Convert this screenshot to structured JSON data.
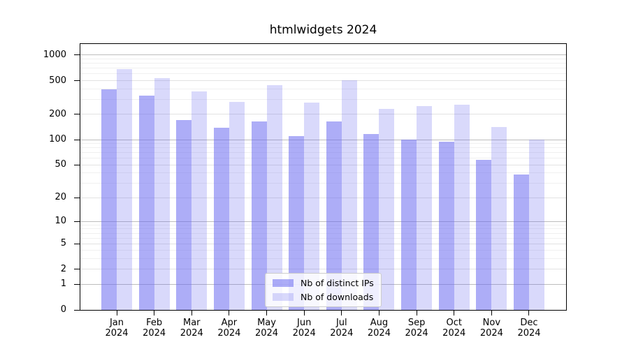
{
  "chart_data": {
    "type": "bar",
    "title": "htmlwidgets 2024",
    "scale": "log1p",
    "ylabel": "",
    "xlabel": "",
    "ylim": [
      0,
      1354
    ],
    "y_ticks": [
      1000,
      500,
      200,
      100,
      50,
      20,
      10,
      5,
      2,
      1,
      0
    ],
    "grid": "horizontal, log major + minor lines",
    "legend_position": "inside plot, lower center",
    "categories": [
      {
        "month": "Jan",
        "year": "2024"
      },
      {
        "month": "Feb",
        "year": "2024"
      },
      {
        "month": "Mar",
        "year": "2024"
      },
      {
        "month": "Apr",
        "year": "2024"
      },
      {
        "month": "May",
        "year": "2024"
      },
      {
        "month": "Jun",
        "year": "2024"
      },
      {
        "month": "Jul",
        "year": "2024"
      },
      {
        "month": "Aug",
        "year": "2024"
      },
      {
        "month": "Sep",
        "year": "2024"
      },
      {
        "month": "Oct",
        "year": "2024"
      },
      {
        "month": "Nov",
        "year": "2024"
      },
      {
        "month": "Dec",
        "year": "2024"
      }
    ],
    "series": [
      {
        "name": "Nb of distinct IPs",
        "color": "rgba(105,105,240,0.55)",
        "values": [
          397,
          330,
          172,
          140,
          165,
          111,
          165,
          116,
          100,
          95,
          57,
          38
        ]
      },
      {
        "name": "Nb of downloads",
        "color": "rgba(105,105,240,0.25)",
        "values": [
          690,
          540,
          374,
          280,
          443,
          276,
          507,
          232,
          250,
          260,
          142,
          101
        ]
      }
    ]
  },
  "colors": {
    "background": "#ffffff",
    "axis": "#000000",
    "text": "#000000",
    "grid_major": "#bdbdbd",
    "grid_mid": "#e2e2e2",
    "grid_minor": "#f0f0f0",
    "legend_bg": "rgba(255,255,255,0.8)",
    "legend_border": "#cccccc"
  }
}
